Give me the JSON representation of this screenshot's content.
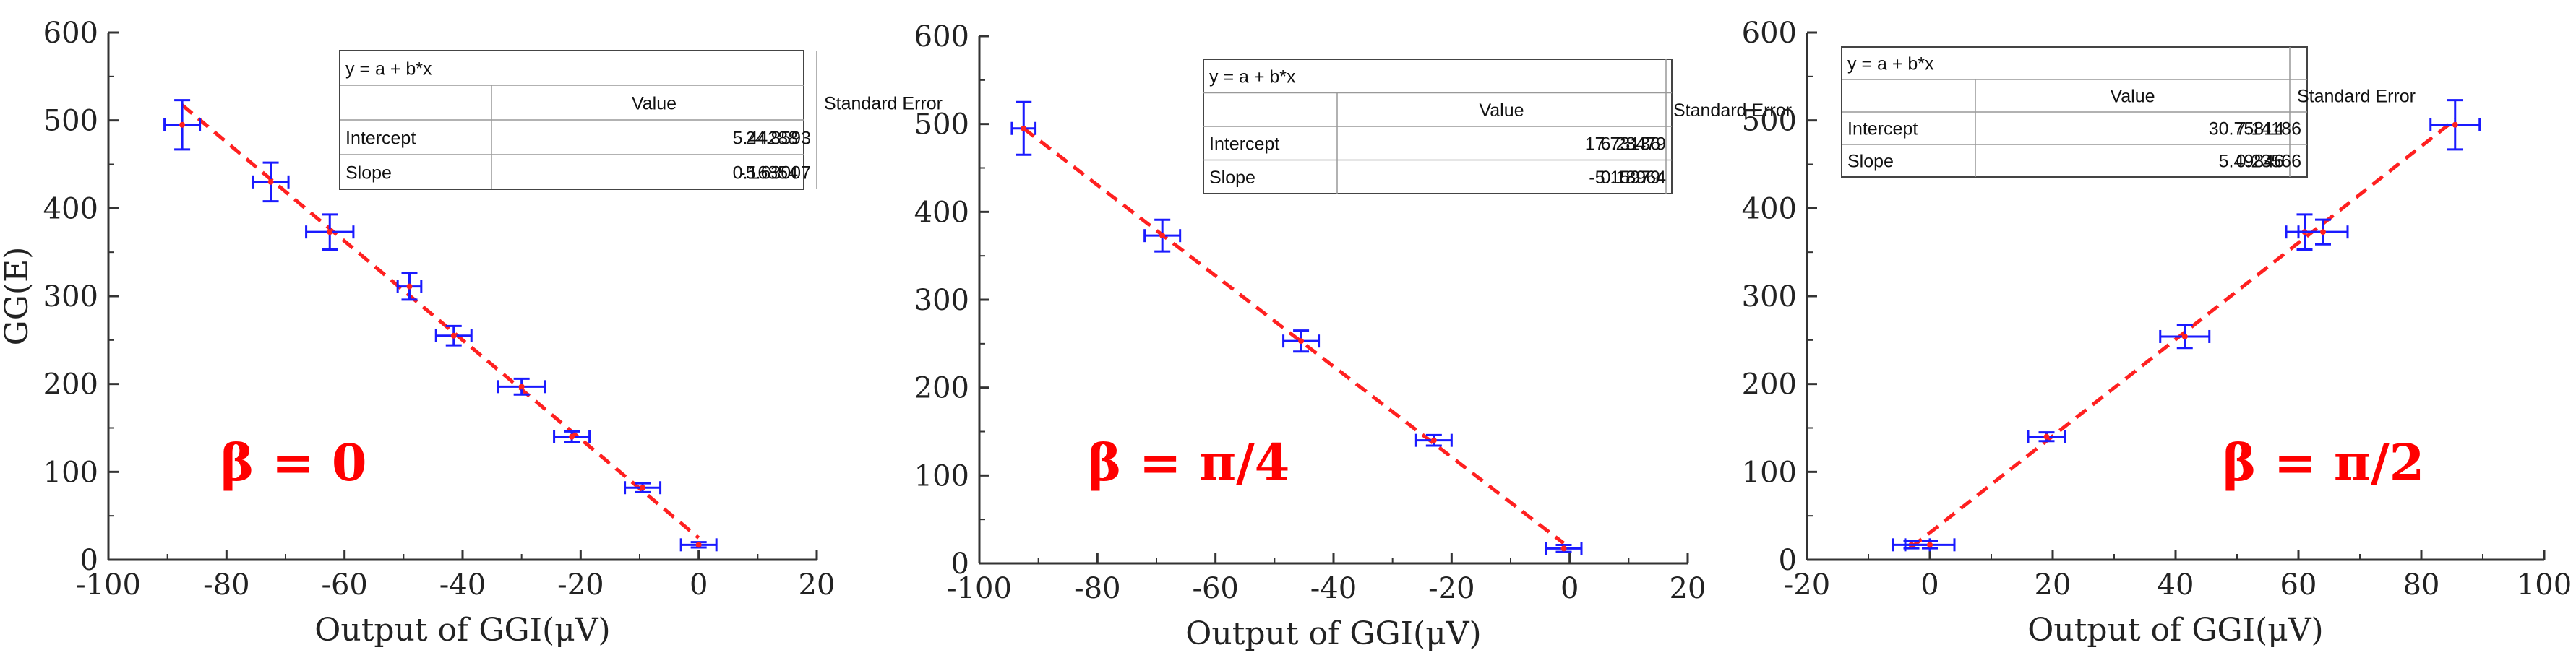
{
  "colors": {
    "fit_line": "#ff2020",
    "error_bar": "#1a1aff",
    "marker": "#ff2020",
    "annotation": "#ff0000",
    "axis": "#333333"
  },
  "chart_data": [
    {
      "type": "scatter",
      "title": "",
      "xlabel": "Output of GGI(μV)",
      "ylabel": "GG(E)",
      "xlim": [
        -100,
        20
      ],
      "ylim": [
        0,
        600
      ],
      "xticks": [
        -100,
        -80,
        -60,
        -40,
        -20,
        0,
        20
      ],
      "yticks": [
        0,
        100,
        200,
        300,
        400,
        500,
        600
      ],
      "annotation": "β = 0",
      "fit": {
        "formula": "y = a + b*x",
        "col_value": "Value",
        "col_error": "Standard Error",
        "intercept_label": "Intercept",
        "intercept": 24.8593,
        "intercept_error": 5.44288,
        "slope_label": "Slope",
        "slope": -5.63007,
        "slope_error": 0.16854
      },
      "points": [
        {
          "x": -87.5,
          "y": 495,
          "xerr": 3,
          "yerr": 28
        },
        {
          "x": -72.5,
          "y": 430,
          "xerr": 3,
          "yerr": 22
        },
        {
          "x": -62.5,
          "y": 373,
          "xerr": 4,
          "yerr": 20
        },
        {
          "x": -49,
          "y": 311,
          "xerr": 2,
          "yerr": 15
        },
        {
          "x": -41.5,
          "y": 255,
          "xerr": 3,
          "yerr": 11
        },
        {
          "x": -30,
          "y": 197,
          "xerr": 4,
          "yerr": 9
        },
        {
          "x": -21.5,
          "y": 140,
          "xerr": 3,
          "yerr": 6
        },
        {
          "x": -9.5,
          "y": 82,
          "xerr": 3,
          "yerr": 5
        },
        {
          "x": 0,
          "y": 17,
          "xerr": 3,
          "yerr": 3
        }
      ]
    },
    {
      "type": "scatter",
      "title": "",
      "xlabel": "Output of GGI(μV)",
      "ylabel": "",
      "xlim": [
        -100,
        20
      ],
      "ylim": [
        0,
        600
      ],
      "xticks": [
        -100,
        -80,
        -60,
        -40,
        -20,
        0,
        20
      ],
      "yticks": [
        0,
        100,
        200,
        300,
        400,
        500,
        600
      ],
      "annotation": "β = π/4",
      "fit": {
        "formula": "y = a + b*x",
        "col_value": "Value",
        "col_error": "Standard Error",
        "intercept_label": "Intercept",
        "intercept": 17.73136,
        "intercept_error": 6.28479,
        "slope_label": "Slope",
        "slope": -5.15979,
        "slope_error": 0.18964
      },
      "points": [
        {
          "x": -92.5,
          "y": 495,
          "xerr": 2,
          "yerr": 30
        },
        {
          "x": -69,
          "y": 373,
          "xerr": 3,
          "yerr": 18
        },
        {
          "x": -45.5,
          "y": 253,
          "xerr": 3,
          "yerr": 12
        },
        {
          "x": -23,
          "y": 140,
          "xerr": 3,
          "yerr": 6
        },
        {
          "x": -1,
          "y": 17,
          "xerr": 3,
          "yerr": 4
        }
      ]
    },
    {
      "type": "scatter",
      "title": "",
      "xlabel": "Output of GGI(μV)",
      "ylabel": "",
      "xlim": [
        -20,
        100
      ],
      "ylim": [
        0,
        600
      ],
      "xticks": [
        -20,
        0,
        20,
        40,
        60,
        80,
        100
      ],
      "yticks": [
        0,
        100,
        200,
        300,
        400,
        500,
        600
      ],
      "annotation": "β = π/2",
      "fit": {
        "formula": "y = a + b*x",
        "col_value": "Value",
        "col_error": "Standard Error",
        "intercept_label": "Intercept",
        "intercept": 30.75814,
        "intercept_error": 7.14186,
        "slope_label": "Slope",
        "slope": 5.49846,
        "slope_error": 0.23566
      },
      "points": [
        {
          "x": -3,
          "y": 17,
          "xerr": 3,
          "yerr": 4
        },
        {
          "x": 0,
          "y": 17,
          "xerr": 4,
          "yerr": 4
        },
        {
          "x": 19,
          "y": 140,
          "xerr": 3,
          "yerr": 5
        },
        {
          "x": 41.5,
          "y": 254,
          "xerr": 4,
          "yerr": 13
        },
        {
          "x": 61,
          "y": 373,
          "xerr": 3,
          "yerr": 20
        },
        {
          "x": 64,
          "y": 373,
          "xerr": 4,
          "yerr": 14
        },
        {
          "x": 85.5,
          "y": 495,
          "xerr": 4,
          "yerr": 28
        }
      ]
    }
  ]
}
